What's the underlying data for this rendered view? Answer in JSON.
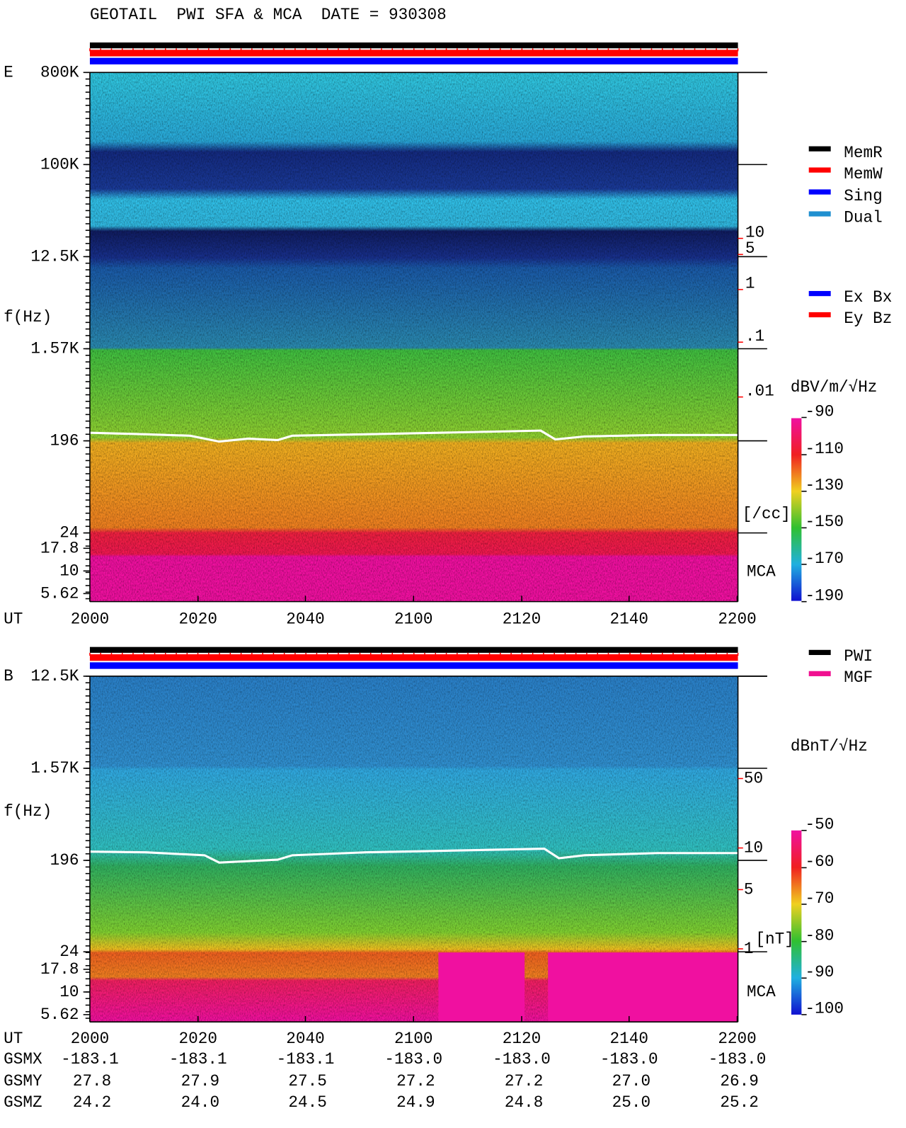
{
  "header": {
    "title": "GEOTAIL  PWI SFA & MCA  DATE = 930308"
  },
  "panel_e": {
    "label": "E",
    "y_label": "f(Hz)",
    "freq_ticks": [
      "800K",
      "100K",
      "12.5K",
      "1.57K",
      "196",
      "24",
      "17.8",
      "10",
      "5.62"
    ],
    "mca": "MCA",
    "time_label": "UT",
    "time_ticks": [
      "2000",
      "2020",
      "2040",
      "2100",
      "2120",
      "2140",
      "2200"
    ],
    "density_ticks": [
      "10",
      "5",
      "1",
      ".1",
      ".01"
    ],
    "density_unit": "[/cc]"
  },
  "panel_b": {
    "label": "B",
    "y_label": "f(Hz)",
    "freq_ticks": [
      "12.5K",
      "1.57K",
      "196",
      "24",
      "17.8",
      "10",
      "5.62"
    ],
    "mca": "MCA",
    "time_label": "UT",
    "time_ticks": [
      "2000",
      "2020",
      "2040",
      "2100",
      "2120",
      "2140",
      "2200"
    ],
    "field_ticks": [
      "50",
      "10",
      "5",
      "1"
    ],
    "field_unit": "[nT]"
  },
  "legend_mem": [
    "MemR",
    "MemW",
    "Sing",
    "Dual"
  ],
  "legend_comp": [
    "Ex Bx",
    "Ey Bz"
  ],
  "legend_src": [
    "PWI",
    "MGF"
  ],
  "colorbar_e": {
    "unit": "dBV/m/√Hz",
    "ticks": [
      "-90",
      "-110",
      "-130",
      "-150",
      "-170",
      "-190"
    ]
  },
  "colorbar_b": {
    "unit": "dBnT/√Hz",
    "ticks": [
      "-50",
      "-60",
      "-70",
      "-80",
      "-90",
      "-100"
    ]
  },
  "orbit": {
    "rows": [
      {
        "name": "GSMX",
        "values": [
          "-183.1",
          "-183.1",
          "-183.1",
          "-183.0",
          "-183.0",
          "-183.0",
          "-183.0"
        ]
      },
      {
        "name": "GSMY",
        "values": [
          "27.8",
          "27.9",
          "27.5",
          "27.2",
          "27.2",
          "27.0",
          "26.9"
        ]
      },
      {
        "name": "GSMZ",
        "values": [
          "24.2",
          "24.0",
          "24.5",
          "24.9",
          "24.8",
          "25.0",
          "25.2"
        ]
      }
    ]
  }
}
